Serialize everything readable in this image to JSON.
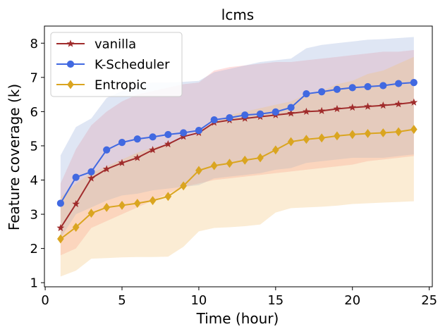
{
  "chart_data": {
    "type": "line",
    "title": "lcms",
    "xlabel": "Time (hour)",
    "ylabel": "Feature coverage (k)",
    "xlim": [
      -0.05,
      25.2
    ],
    "ylim": [
      0.88,
      8.5
    ],
    "xticks": [
      0,
      5,
      10,
      15,
      20,
      25
    ],
    "yticks": [
      1,
      2,
      3,
      4,
      5,
      6,
      7,
      8
    ],
    "legend_position": "top-left",
    "x": [
      1,
      2,
      3,
      4,
      5,
      6,
      7,
      8,
      9,
      10,
      11,
      12,
      13,
      14,
      15,
      16,
      17,
      18,
      19,
      20,
      21,
      22,
      23,
      24
    ],
    "series": [
      {
        "name": "vanilla",
        "color": "#a02c2c",
        "marker": "star",
        "values": [
          2.6,
          3.3,
          4.05,
          4.32,
          4.5,
          4.65,
          4.88,
          5.05,
          5.27,
          5.38,
          5.68,
          5.75,
          5.8,
          5.85,
          5.9,
          5.95,
          6.0,
          6.02,
          6.08,
          6.12,
          6.15,
          6.18,
          6.22,
          6.27
        ],
        "band_color": "#ff9999",
        "band_upper": [
          3.9,
          4.9,
          5.6,
          6.0,
          6.3,
          6.5,
          6.6,
          6.7,
          6.8,
          6.85,
          7.2,
          7.3,
          7.35,
          7.4,
          7.45,
          7.45,
          7.5,
          7.55,
          7.6,
          7.65,
          7.7,
          7.75,
          7.75,
          7.8
        ],
        "band_lower": [
          1.8,
          2.0,
          2.6,
          2.8,
          3.0,
          3.2,
          3.4,
          3.6,
          3.8,
          3.9,
          4.0,
          4.05,
          4.1,
          4.15,
          4.2,
          4.25,
          4.3,
          4.35,
          4.4,
          4.45,
          4.55,
          4.6,
          4.65,
          4.7
        ]
      },
      {
        "name": "K-Scheduler",
        "color": "#4169e1",
        "marker": "circle",
        "values": [
          3.32,
          4.08,
          4.24,
          4.88,
          5.1,
          5.2,
          5.26,
          5.33,
          5.38,
          5.45,
          5.76,
          5.82,
          5.9,
          5.93,
          5.99,
          6.12,
          6.52,
          6.58,
          6.65,
          6.7,
          6.73,
          6.76,
          6.82,
          6.85
        ],
        "band_color": "#9ab0dc",
        "band_upper": [
          4.72,
          5.55,
          5.8,
          6.4,
          6.6,
          6.8,
          6.85,
          6.85,
          6.87,
          6.9,
          7.15,
          7.25,
          7.35,
          7.45,
          7.5,
          7.55,
          7.85,
          7.95,
          8.0,
          8.05,
          8.1,
          8.12,
          8.15,
          8.18
        ],
        "band_lower": [
          2.3,
          3.0,
          3.2,
          3.4,
          3.55,
          3.6,
          3.7,
          3.75,
          3.8,
          3.85,
          4.05,
          4.1,
          4.15,
          4.2,
          4.3,
          4.35,
          4.5,
          4.55,
          4.6,
          4.65,
          4.65,
          4.65,
          4.7,
          4.75
        ]
      },
      {
        "name": "Entropic",
        "color": "#daa520",
        "marker": "diamond",
        "values": [
          2.28,
          2.62,
          3.03,
          3.2,
          3.26,
          3.32,
          3.4,
          3.52,
          3.83,
          4.28,
          4.42,
          4.49,
          4.58,
          4.65,
          4.88,
          5.12,
          5.19,
          5.23,
          5.29,
          5.33,
          5.36,
          5.38,
          5.41,
          5.48
        ],
        "band_color": "#f2c47a",
        "band_upper": [
          3.5,
          3.9,
          4.2,
          4.4,
          4.6,
          4.8,
          4.95,
          5.05,
          5.2,
          5.35,
          5.7,
          5.9,
          6.0,
          6.1,
          6.2,
          6.3,
          6.5,
          6.6,
          6.8,
          6.9,
          7.1,
          7.2,
          7.4,
          7.6
        ],
        "band_lower": [
          1.18,
          1.35,
          1.7,
          1.72,
          1.74,
          1.75,
          1.75,
          1.76,
          2.05,
          2.5,
          2.6,
          2.62,
          2.65,
          2.7,
          3.05,
          3.18,
          3.2,
          3.22,
          3.25,
          3.3,
          3.32,
          3.34,
          3.36,
          3.38
        ]
      }
    ]
  }
}
